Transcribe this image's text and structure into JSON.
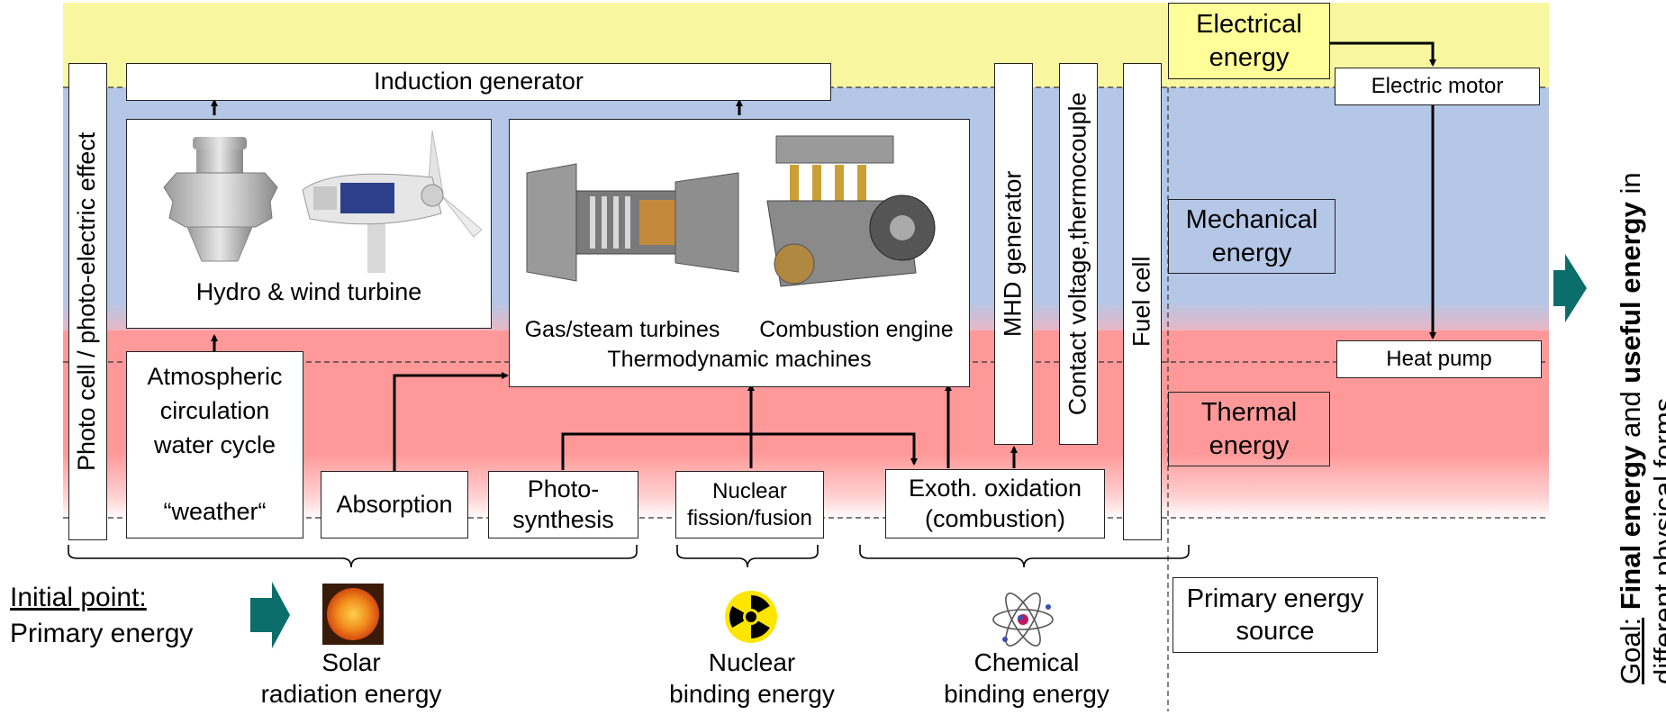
{
  "energy_levels": {
    "electrical": "Electrical energy",
    "mechanical": "Mechanical energy",
    "thermal": "Thermal energy",
    "primary_source": "Primary energy source"
  },
  "converters": {
    "induction_generator": "Induction generator",
    "photo_cell": "Photo cell / photo-electric effect",
    "hydro_wind": "Hydro & wind turbine",
    "gas_steam": "Gas/steam turbines",
    "combustion_engine": "Combustion engine",
    "thermo_machines": "Thermodynamic machines",
    "mhd": "MHD generator",
    "contact_voltage": "Contact voltage,thermocouple",
    "fuel_cell": "Fuel cell",
    "electric_motor": "Electric motor",
    "heat_pump": "Heat pump"
  },
  "processes": {
    "atmospheric_lines": [
      "Atmospheric",
      "circulation",
      "water cycle",
      "",
      "“weather“"
    ],
    "absorption": "Absorption",
    "photosynthesis_lines": [
      "Photo-",
      "synthesis"
    ],
    "nuclear_lines": [
      "Nuclear",
      "fission/fusion"
    ],
    "oxidation_lines": [
      "Exoth. oxidation",
      "(combustion)"
    ]
  },
  "primary": {
    "initial_point": "Initial point:",
    "primary_energy": "Primary energy",
    "solar_lines": [
      "Solar",
      "radiation energy"
    ],
    "nuclear_lines": [
      "Nuclear",
      "binding energy"
    ],
    "chemical_lines": [
      "Chemical",
      "binding energy"
    ]
  },
  "goal": {
    "prefix": "Goal:",
    "final": "Final energy",
    "and": " and ",
    "useful": "useful energy",
    "in": " in",
    "line2": "different physical forms"
  },
  "colors": {
    "electrical_band": "#f8f7a0",
    "mechanical_band": "#b4c7e7",
    "thermal_band": "#ff9999",
    "arrow_teal": "#0b6e6a"
  }
}
